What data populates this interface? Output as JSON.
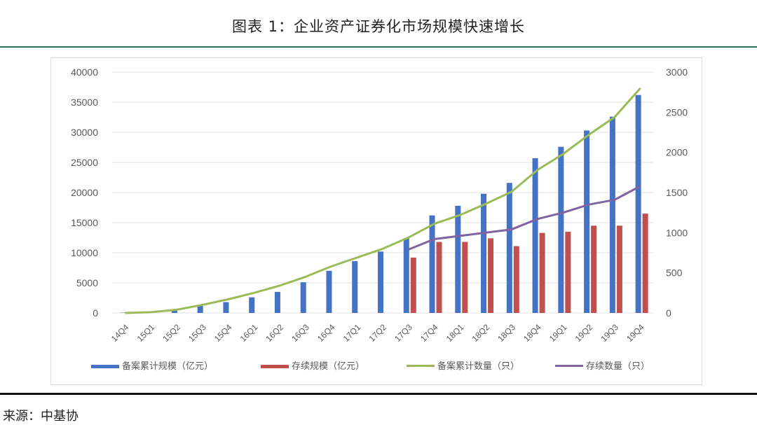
{
  "title": "图表 1：企业资产证券化市场规模快速增长",
  "source": "来源：中基协",
  "colors": {
    "blue": "#4472c4",
    "red": "#c0504d",
    "green": "#9bbb59",
    "purple": "#8064a2"
  },
  "chart_data": {
    "type": "bar+line",
    "title": "图表 1：企业资产证券化市场规模快速增长",
    "categories": [
      "14Q4",
      "15Q1",
      "15Q2",
      "15Q3",
      "15Q4",
      "16Q1",
      "16Q2",
      "16Q3",
      "16Q4",
      "17Q1",
      "17Q2",
      "17Q3",
      "17Q4",
      "18Q1",
      "18Q2",
      "18Q3",
      "18Q4",
      "19Q1",
      "19Q2",
      "19Q3",
      "19Q4"
    ],
    "left_axis": {
      "ylim": [
        0,
        40000
      ],
      "ticks": [
        "0",
        "5000",
        "10000",
        "15000",
        "20000",
        "25000",
        "30000",
        "35000",
        "40000"
      ]
    },
    "right_axis": {
      "ylim": [
        0,
        3000
      ],
      "ticks": [
        "0",
        "500",
        "1000",
        "1500",
        "2000",
        "2500",
        "3000"
      ]
    },
    "grid": true,
    "legend_position": "bottom",
    "series": [
      {
        "name": "备案累计规模（亿元）",
        "type": "bar",
        "axis": "left",
        "color": "#4472c4",
        "values": [
          50,
          100,
          500,
          1200,
          1800,
          2600,
          3500,
          5100,
          7000,
          8600,
          10200,
          12400,
          16200,
          17800,
          19800,
          21600,
          25700,
          27600,
          30300,
          32600,
          36200
        ]
      },
      {
        "name": "存续规模（亿元）",
        "type": "bar",
        "axis": "left",
        "color": "#c0504d",
        "values": [
          null,
          null,
          null,
          null,
          null,
          null,
          null,
          null,
          null,
          null,
          null,
          9200,
          11800,
          11800,
          12400,
          11100,
          13300,
          13500,
          14500,
          14500,
          16500
        ]
      },
      {
        "name": "备案累计数量（只）",
        "type": "line",
        "axis": "right",
        "color": "#9bbb59",
        "values": [
          0,
          10,
          40,
          100,
          170,
          250,
          340,
          450,
          580,
          690,
          800,
          940,
          1110,
          1220,
          1360,
          1510,
          1780,
          1980,
          2220,
          2440,
          2800
        ]
      },
      {
        "name": "存续数量（只）",
        "type": "line",
        "axis": "right",
        "color": "#8064a2",
        "values": [
          null,
          null,
          null,
          null,
          null,
          null,
          null,
          null,
          null,
          null,
          null,
          790,
          920,
          960,
          1000,
          1040,
          1170,
          1250,
          1350,
          1410,
          1580
        ]
      }
    ]
  }
}
